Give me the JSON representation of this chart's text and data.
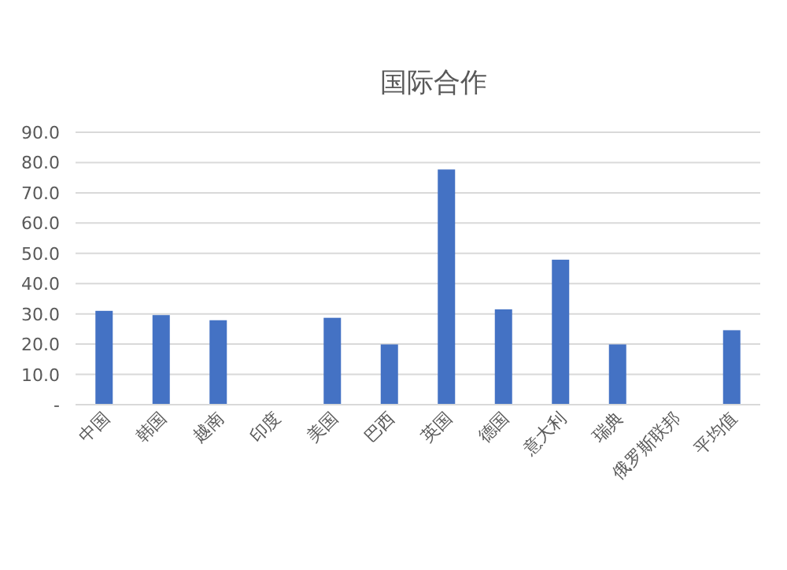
{
  "chart_data": {
    "type": "bar",
    "title": "国际合作",
    "categories": [
      "中国",
      "韩国",
      "越南",
      "印度",
      "美国",
      "巴西",
      "英国",
      "德国",
      "意大利",
      "瑞典",
      "俄罗斯联邦",
      "平均值"
    ],
    "values": [
      31.0,
      29.6,
      27.9,
      0,
      28.7,
      19.9,
      77.7,
      31.5,
      47.9,
      19.9,
      0,
      24.6
    ],
    "color": "#4472c4",
    "ylim": [
      0,
      90
    ],
    "yticks": [
      {
        "value": 0,
        "label": "-"
      },
      {
        "value": 10,
        "label": "10.0"
      },
      {
        "value": 20,
        "label": "20.0"
      },
      {
        "value": 30,
        "label": "30.0"
      },
      {
        "value": 40,
        "label": "40.0"
      },
      {
        "value": 50,
        "label": "50.0"
      },
      {
        "value": 60,
        "label": "60.0"
      },
      {
        "value": 70,
        "label": "70.0"
      },
      {
        "value": 80,
        "label": "80.0"
      },
      {
        "value": 90,
        "label": "90.0"
      }
    ],
    "grid": "y"
  }
}
